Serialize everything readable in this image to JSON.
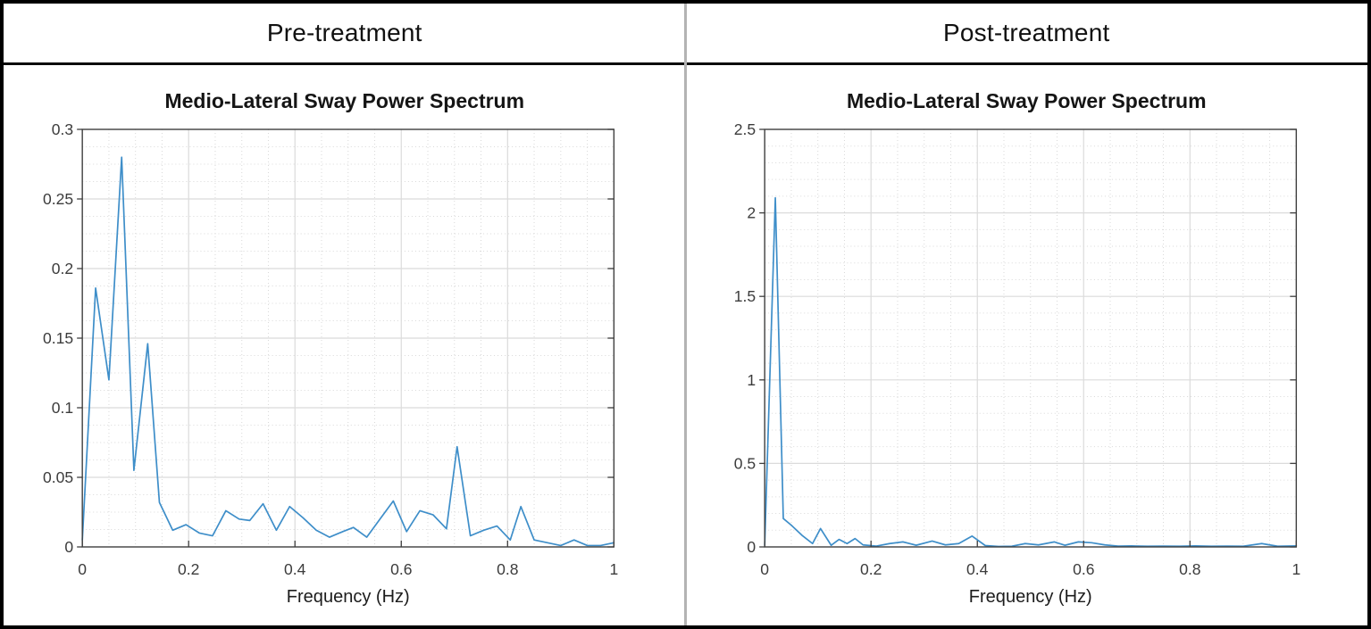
{
  "colors": {
    "line": "#3e8ec9",
    "major_grid": "#dbdbdb",
    "minor_grid": "#d9d9d9",
    "frame": "#3f3f3f",
    "tick_text": "#3c3c3c",
    "axis_label_text": "#1c1c1c",
    "divider": "#b3b3b3",
    "outer_border": "#000000",
    "background": "#ffffff"
  },
  "panels": [
    {
      "header": "Pre-treatment"
    },
    {
      "header": "Post-treatment"
    }
  ],
  "chart_data": [
    {
      "type": "line",
      "title": "Medio-Lateral Sway Power Spectrum",
      "xlabel": "Frequency (Hz)",
      "ylabel": "",
      "xlim": [
        0,
        1
      ],
      "ylim": [
        0,
        0.3
      ],
      "xticks": [
        0,
        0.2,
        0.4,
        0.6,
        0.8,
        1
      ],
      "xtick_labels": [
        "0",
        "0.2",
        "0.4",
        "0.6",
        "0.8",
        "1"
      ],
      "yticks": [
        0,
        0.05,
        0.1,
        0.15,
        0.2,
        0.25,
        0.3
      ],
      "ytick_labels": [
        "0",
        "0.05",
        "0.1",
        "0.15",
        "0.2",
        "0.25",
        "0.3"
      ],
      "x_minor_step": 0.05,
      "y_minor_step": 0.0125,
      "grid": "major+minor",
      "legend": "none",
      "series": [
        {
          "x": [
            0,
            0.025,
            0.05,
            0.074,
            0.097,
            0.123,
            0.145,
            0.17,
            0.195,
            0.22,
            0.245,
            0.27,
            0.295,
            0.315,
            0.34,
            0.365,
            0.39,
            0.415,
            0.44,
            0.465,
            0.49,
            0.51,
            0.535,
            0.56,
            0.585,
            0.61,
            0.635,
            0.66,
            0.685,
            0.705,
            0.73,
            0.755,
            0.78,
            0.805,
            0.825,
            0.85,
            0.875,
            0.9,
            0.925,
            0.95,
            0.975,
            1.0
          ],
          "y": [
            0.005,
            0.186,
            0.12,
            0.28,
            0.055,
            0.146,
            0.032,
            0.012,
            0.016,
            0.01,
            0.008,
            0.026,
            0.02,
            0.019,
            0.031,
            0.012,
            0.029,
            0.021,
            0.012,
            0.007,
            0.011,
            0.014,
            0.007,
            0.02,
            0.033,
            0.011,
            0.026,
            0.023,
            0.013,
            0.072,
            0.008,
            0.012,
            0.015,
            0.005,
            0.029,
            0.005,
            0.003,
            0.001,
            0.005,
            0.001,
            0.001,
            0.003
          ]
        }
      ]
    },
    {
      "type": "line",
      "title": "Medio-Lateral Sway Power Spectrum",
      "xlabel": "Frequency (Hz)",
      "ylabel": "",
      "xlim": [
        0,
        1
      ],
      "ylim": [
        0,
        2.5
      ],
      "xticks": [
        0,
        0.2,
        0.4,
        0.6,
        0.8,
        1
      ],
      "xtick_labels": [
        "0",
        "0.2",
        "0.4",
        "0.6",
        "0.8",
        "1"
      ],
      "yticks": [
        0,
        0.5,
        1,
        1.5,
        2,
        2.5
      ],
      "ytick_labels": [
        "0",
        "0.5",
        "1",
        "1.5",
        "2",
        "2.5"
      ],
      "x_minor_step": 0.05,
      "y_minor_step": 0.1,
      "grid": "major+minor",
      "legend": "none",
      "series": [
        {
          "x": [
            0,
            0.02,
            0.035,
            0.05,
            0.07,
            0.09,
            0.105,
            0.125,
            0.14,
            0.155,
            0.17,
            0.185,
            0.21,
            0.235,
            0.26,
            0.285,
            0.315,
            0.34,
            0.365,
            0.39,
            0.415,
            0.44,
            0.465,
            0.49,
            0.515,
            0.545,
            0.565,
            0.59,
            0.615,
            0.64,
            0.665,
            0.69,
            0.72,
            0.75,
            0.78,
            0.81,
            0.84,
            0.87,
            0.9,
            0.935,
            0.965,
            1.0
          ],
          "y": [
            0.01,
            2.09,
            0.17,
            0.13,
            0.07,
            0.02,
            0.11,
            0.01,
            0.045,
            0.02,
            0.05,
            0.012,
            0.005,
            0.02,
            0.03,
            0.01,
            0.035,
            0.012,
            0.02,
            0.065,
            0.008,
            0.003,
            0.004,
            0.02,
            0.012,
            0.03,
            0.01,
            0.03,
            0.025,
            0.012,
            0.005,
            0.006,
            0.004,
            0.005,
            0.004,
            0.006,
            0.004,
            0.005,
            0.004,
            0.02,
            0.004,
            0.006
          ]
        }
      ]
    }
  ]
}
